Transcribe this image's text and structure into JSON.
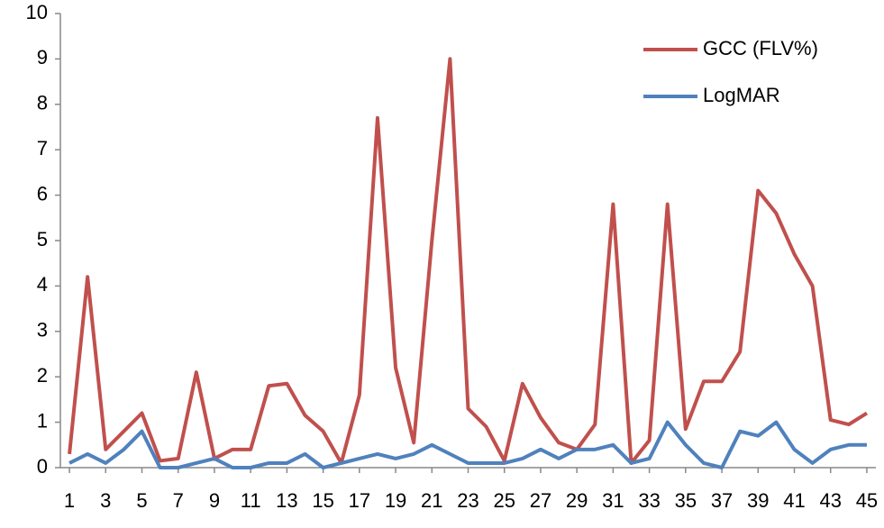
{
  "chart_data": {
    "type": "line",
    "x": [
      1,
      2,
      3,
      4,
      5,
      6,
      7,
      8,
      9,
      10,
      11,
      12,
      13,
      14,
      15,
      16,
      17,
      18,
      19,
      20,
      21,
      22,
      23,
      24,
      25,
      26,
      27,
      28,
      29,
      30,
      31,
      32,
      33,
      34,
      35,
      36,
      37,
      38,
      39,
      40,
      41,
      42,
      43,
      44,
      45
    ],
    "series": [
      {
        "name": "GCC (FLV%)",
        "color": "#c0504d",
        "values": [
          0.3,
          4.2,
          0.4,
          0.8,
          1.2,
          0.15,
          0.2,
          2.1,
          0.2,
          0.4,
          0.4,
          1.8,
          1.85,
          1.15,
          0.8,
          0.1,
          1.6,
          7.7,
          2.2,
          0.55,
          5.0,
          9.0,
          1.3,
          0.9,
          0.15,
          1.85,
          1.1,
          0.55,
          0.4,
          0.95,
          5.8,
          0.1,
          0.6,
          5.8,
          0.85,
          1.9,
          1.9,
          2.55,
          6.1,
          5.6,
          4.7,
          4.0,
          1.05,
          0.95,
          1.2
        ]
      },
      {
        "name": "LogMAR",
        "color": "#4f81bd",
        "values": [
          0.1,
          0.3,
          0.1,
          0.4,
          0.8,
          0,
          0,
          0.1,
          0.2,
          0,
          0,
          0.1,
          0.1,
          0.3,
          0,
          0.1,
          0.2,
          0.3,
          0.2,
          0.3,
          0.5,
          0.3,
          0.1,
          0.1,
          0.1,
          0.2,
          0.4,
          0.2,
          0.4,
          0.4,
          0.5,
          0.1,
          0.2,
          1.0,
          0.5,
          0.1,
          0,
          0.8,
          0.7,
          1.0,
          0.4,
          0.1,
          0.4,
          0.5,
          0.5
        ]
      }
    ],
    "xlim": [
      0.5,
      45.5
    ],
    "xticks": [
      1,
      3,
      5,
      7,
      9,
      11,
      13,
      15,
      17,
      19,
      21,
      23,
      25,
      27,
      29,
      31,
      33,
      35,
      37,
      39,
      41,
      43,
      45
    ],
    "ylim": [
      0,
      10
    ],
    "yticks": [
      0,
      1,
      2,
      3,
      4,
      5,
      6,
      7,
      8,
      9,
      10
    ],
    "grid": false,
    "legend": "top-right"
  }
}
